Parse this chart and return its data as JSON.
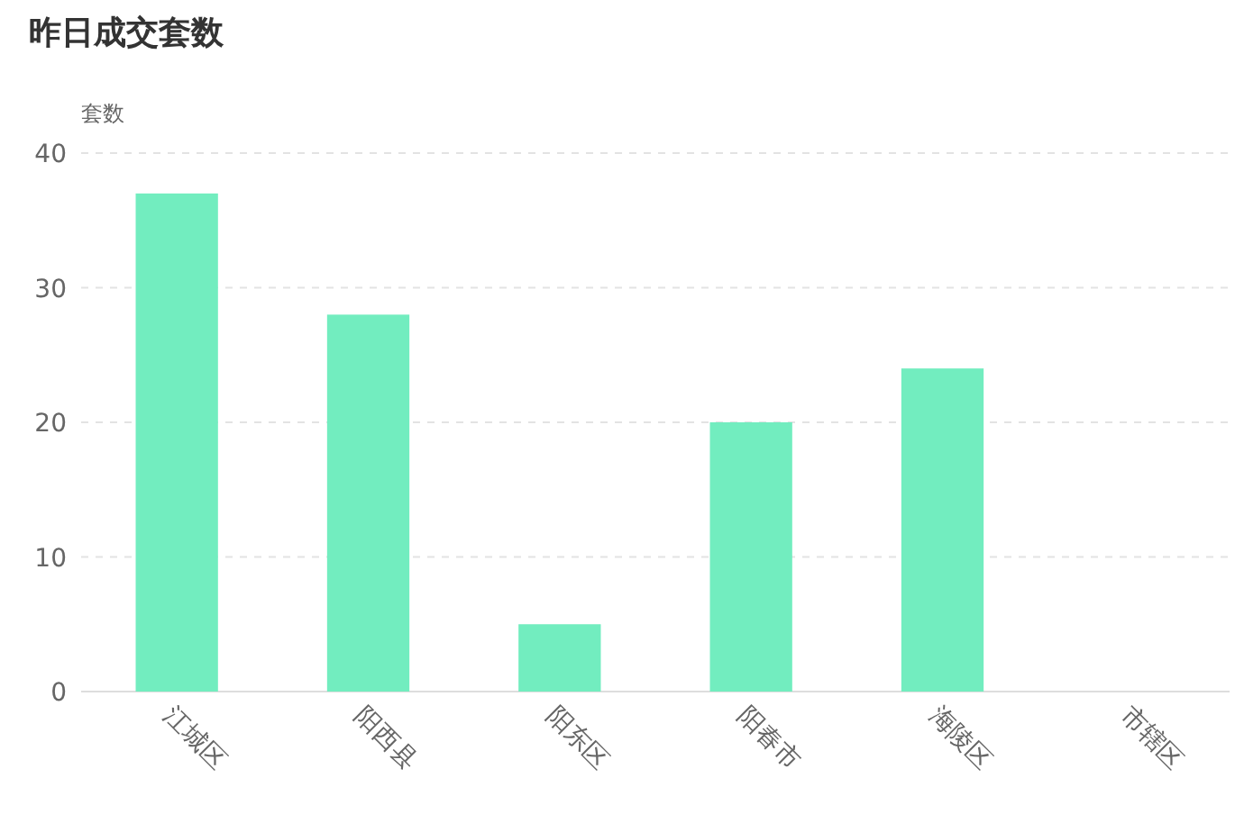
{
  "chart_data": {
    "type": "bar",
    "title": "昨日成交套数",
    "ylabel": "套数",
    "categories": [
      "江城区",
      "阳西县",
      "阳东区",
      "阳春市",
      "海陵区",
      "市辖区"
    ],
    "values": [
      37,
      28,
      5,
      20,
      24,
      0
    ],
    "color": "#72edbf",
    "ylim": [
      0,
      40
    ],
    "yticks": [
      0,
      10,
      20,
      30,
      40
    ],
    "grid": "y"
  }
}
